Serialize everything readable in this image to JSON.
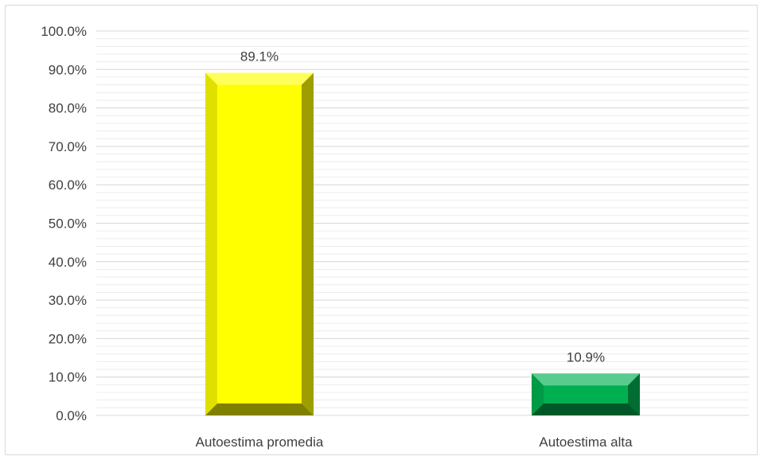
{
  "chart_data": {
    "type": "bar",
    "categories": [
      "Autoestima promedia",
      "Autoestima alta"
    ],
    "values": [
      89.1,
      10.9
    ],
    "data_labels": [
      "89.1%",
      "10.9%"
    ],
    "colors": [
      "#ffff00",
      "#00b050"
    ],
    "ylim": [
      0,
      100
    ],
    "y_major_step": 10,
    "y_minor_step": 2,
    "y_tick_labels": [
      "0.0%",
      "10.0%",
      "20.0%",
      "30.0%",
      "40.0%",
      "50.0%",
      "60.0%",
      "70.0%",
      "80.0%",
      "90.0%",
      "100.0%"
    ],
    "grid": true,
    "legend": "none",
    "title": "",
    "xlabel": "",
    "ylabel": ""
  }
}
